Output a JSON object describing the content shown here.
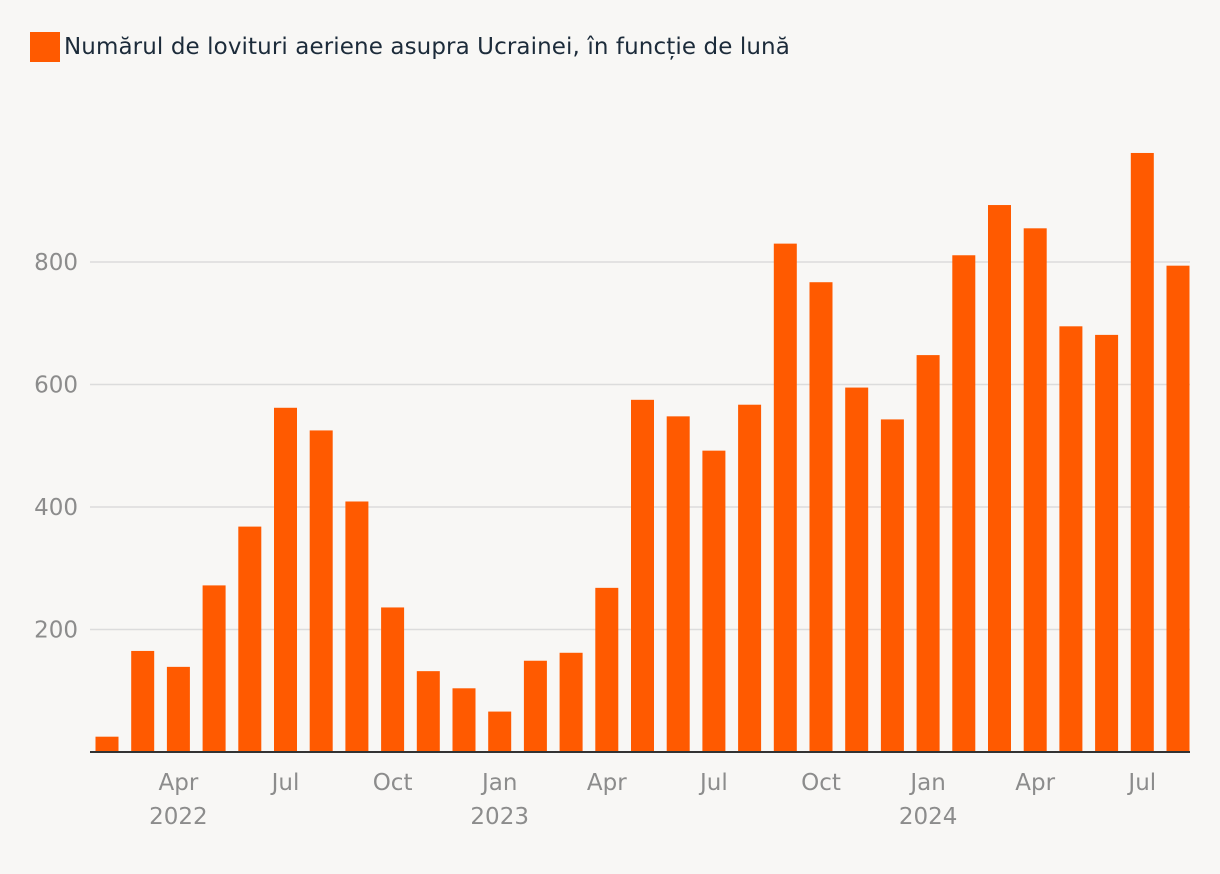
{
  "legend": {
    "label": "Numărul de lovituri aeriene asupra Ucrainei, în funcție de lună"
  },
  "colors": {
    "bar": "#ff5a00",
    "grid": "#dcdcdc",
    "axis": "#333333",
    "tick_text": "#8c8c8c",
    "title_text": "#1c2b3a"
  },
  "chart_data": {
    "type": "bar",
    "title": "Numărul de lovituri aeriene asupra Ucrainei, în funcție de lună",
    "xlabel": "",
    "ylabel": "",
    "ylim": [
      0,
      1000
    ],
    "yticks": [
      200,
      400,
      600,
      800
    ],
    "grid": true,
    "legend_position": "top-left",
    "categories": [
      "2022-02",
      "2022-03",
      "2022-04",
      "2022-05",
      "2022-06",
      "2022-07",
      "2022-08",
      "2022-09",
      "2022-10",
      "2022-11",
      "2022-12",
      "2023-01",
      "2023-02",
      "2023-03",
      "2023-04",
      "2023-05",
      "2023-06",
      "2023-07",
      "2023-08",
      "2023-09",
      "2023-10",
      "2023-11",
      "2023-12",
      "2024-01",
      "2024-02",
      "2024-03",
      "2024-04",
      "2024-05",
      "2024-06",
      "2024-07",
      "2024-08"
    ],
    "values": [
      25,
      165,
      139,
      272,
      368,
      562,
      525,
      409,
      236,
      132,
      104,
      66,
      149,
      162,
      268,
      575,
      548,
      492,
      567,
      830,
      767,
      595,
      543,
      648,
      811,
      893,
      855,
      695,
      681,
      978,
      794
    ],
    "x_month_labels": [
      {
        "index": 2,
        "label": "Apr"
      },
      {
        "index": 5,
        "label": "Jul"
      },
      {
        "index": 8,
        "label": "Oct"
      },
      {
        "index": 11,
        "label": "Jan"
      },
      {
        "index": 14,
        "label": "Apr"
      },
      {
        "index": 17,
        "label": "Jul"
      },
      {
        "index": 20,
        "label": "Oct"
      },
      {
        "index": 23,
        "label": "Jan"
      },
      {
        "index": 26,
        "label": "Apr"
      },
      {
        "index": 29,
        "label": "Jul"
      }
    ],
    "x_year_labels": [
      {
        "index": 2,
        "label": "2022"
      },
      {
        "index": 11,
        "label": "2023"
      },
      {
        "index": 23,
        "label": "2024"
      }
    ]
  }
}
